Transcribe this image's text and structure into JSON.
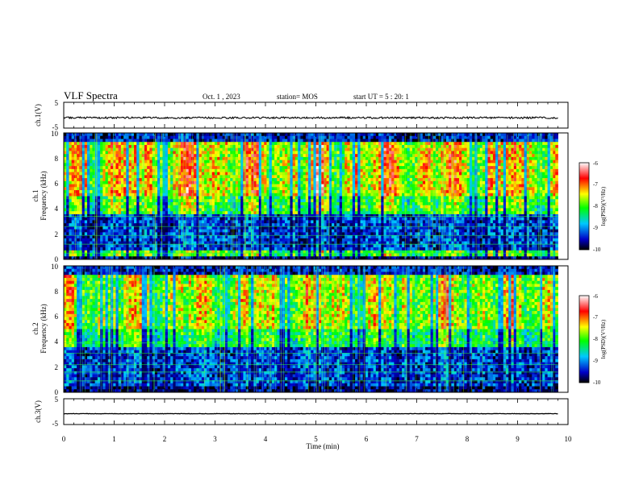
{
  "header": {
    "title": "VLF Spectra",
    "date": "Oct. 1 , 2023",
    "station": "station= MOS",
    "start_ut": "start UT =  5 : 20: 1"
  },
  "chart_data": [
    {
      "type": "line",
      "panel": "ch1-waveform",
      "ylabel": "ch.1(V)",
      "ylim": [
        -5,
        5
      ],
      "yticks": [
        "5",
        "-5"
      ],
      "xlim": [
        0,
        10
      ],
      "trace_level": -1,
      "color": "#000000"
    },
    {
      "type": "heatmap",
      "panel": "ch1-spectrogram",
      "ylabel_channel": "ch.1",
      "ylabel": "Frequency (kHz)",
      "ylim": [
        0,
        10
      ],
      "yticks": [
        "0",
        "2",
        "4",
        "6",
        "8",
        "10"
      ],
      "xlim": [
        0,
        9.8
      ],
      "colorbar": {
        "label": "log(PSD)(V²/Hz)",
        "range": [
          -10,
          -6
        ],
        "ticks": [
          "-6",
          "-7",
          "-8",
          "-9",
          "-10"
        ],
        "colormap": [
          "#000000",
          "#0000c8",
          "#00c8ff",
          "#00ff00",
          "#ffff00",
          "#ff0000",
          "#ffffff"
        ]
      }
    },
    {
      "type": "heatmap",
      "panel": "ch2-spectrogram",
      "ylabel_channel": "ch.2",
      "ylabel": "Frequency (kHz)",
      "ylim": [
        0,
        10
      ],
      "yticks": [
        "0",
        "2",
        "4",
        "6",
        "8",
        "10"
      ],
      "xlim": [
        0,
        9.8
      ],
      "colorbar": {
        "label": "log(PSD)(V²/Hz)",
        "range": [
          -10,
          -6
        ],
        "ticks": [
          "-6",
          "-7",
          "-8",
          "-9",
          "-10"
        ],
        "colormap": [
          "#000000",
          "#0000c8",
          "#00c8ff",
          "#00ff00",
          "#ffff00",
          "#ff0000",
          "#ffffff"
        ]
      }
    },
    {
      "type": "line",
      "panel": "ch3-waveform",
      "ylabel": "ch.3(V)",
      "ylim": [
        -5,
        5
      ],
      "yticks": [
        "5",
        "-5"
      ],
      "xlim": [
        0,
        10
      ],
      "trace_level": -0.8,
      "color": "#000000"
    }
  ],
  "xaxis": {
    "label": "Time (min)",
    "range": [
      0,
      10
    ],
    "ticks": [
      "0",
      "1",
      "2",
      "3",
      "4",
      "5",
      "6",
      "7",
      "8",
      "9",
      "10"
    ]
  }
}
